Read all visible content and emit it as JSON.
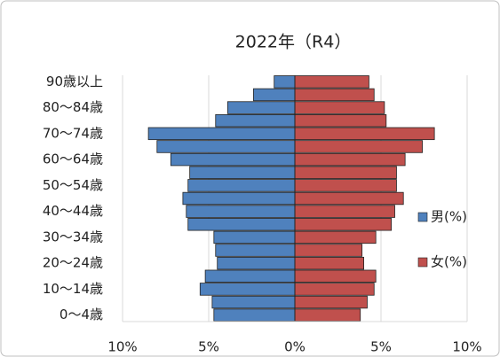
{
  "chart_data": {
    "type": "pyramid",
    "title": "2022年（R4）",
    "categories": [
      "0〜4歳",
      null,
      "10〜14歳",
      null,
      "20〜24歳",
      null,
      "30〜34歳",
      null,
      "40〜44歳",
      null,
      "50〜54歳",
      null,
      "60〜64歳",
      null,
      "70〜74歳",
      null,
      "80〜84歳",
      null,
      "90歳以上"
    ],
    "series": [
      {
        "name": "男(%)",
        "color": "#4f81bd",
        "values": [
          -4.7,
          -4.8,
          -5.5,
          -5.2,
          -4.5,
          -4.6,
          -4.7,
          -6.2,
          -6.3,
          -6.5,
          -6.2,
          -6.1,
          -7.2,
          -8.0,
          -8.5,
          -4.6,
          -3.9,
          -2.4,
          -1.2
        ]
      },
      {
        "name": "女(%)",
        "color": "#c0504d",
        "values": [
          3.8,
          4.2,
          4.6,
          4.7,
          4.0,
          3.9,
          4.7,
          5.6,
          5.8,
          6.3,
          5.9,
          5.9,
          6.4,
          7.4,
          8.1,
          5.3,
          5.2,
          4.6,
          4.3
        ]
      }
    ],
    "xlim": [
      -10,
      10
    ],
    "xticks": [
      {
        "value": -10,
        "label": "10%"
      },
      {
        "value": -5,
        "label": "5%"
      },
      {
        "value": 0,
        "label": "0%"
      },
      {
        "value": 5,
        "label": "5%"
      },
      {
        "value": 10,
        "label": "10%"
      }
    ],
    "grid": true,
    "legend": "right"
  }
}
